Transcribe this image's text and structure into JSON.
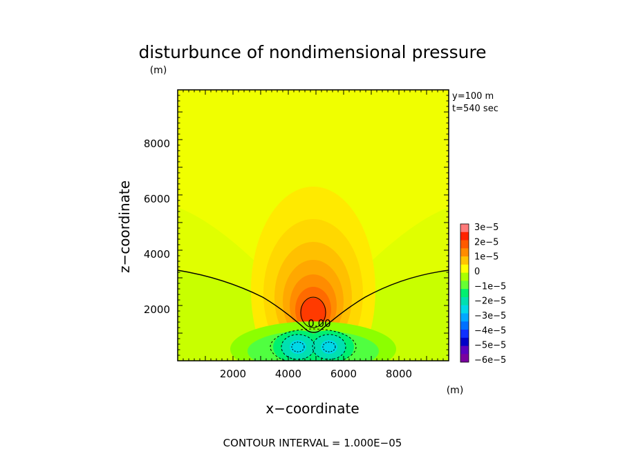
{
  "chart_data": {
    "type": "heatmap",
    "title": "disturbunce of nondimensional pressure",
    "xlabel": "x−coordinate",
    "ylabel": "z−coordinate",
    "x_unit": "(m)",
    "y_unit": "(m)",
    "xlim": [
      0,
      9800
    ],
    "ylim": [
      0,
      9800
    ],
    "x_ticks": [
      2000,
      4000,
      6000,
      8000
    ],
    "y_ticks": [
      2000,
      4000,
      6000,
      8000
    ],
    "x_tick_labels": [
      "2000",
      "4000",
      "6000",
      "8000"
    ],
    "y_tick_labels": [
      "2000",
      "4000",
      "6000",
      "8000"
    ],
    "annotation_lines": [
      "y=100  m",
      "t=540  sec"
    ],
    "colorbar": {
      "labels": [
        "3e−5",
        "2e−5",
        "1e−5",
        "0",
        "−1e−5",
        "−2e−5",
        "−3e−5",
        "−4e−5",
        "−5e−5",
        "−6e−5"
      ],
      "values": [
        3e-05,
        2e-05,
        1e-05,
        0,
        -1e-05,
        -2e-05,
        -3e-05,
        -4e-05,
        -5e-05,
        -6e-05
      ],
      "band_colors": [
        "#ff7a7a",
        "#ff2200",
        "#ff5a00",
        "#ff8c00",
        "#ffc400",
        "#ffff00",
        "#aaff00",
        "#66ff33",
        "#00f070",
        "#00e0b0",
        "#00d8e8",
        "#00a8ff",
        "#0070ff",
        "#1030ff",
        "#0000c8",
        "#5a00c0",
        "#7a00a0"
      ]
    },
    "features": {
      "background_value": 1e-06,
      "positive_center": {
        "x": 5000,
        "z": 1800,
        "peak": 2.3e-05
      },
      "negative_centers": [
        {
          "x": 4450,
          "z": 550,
          "min": -3.2e-05
        },
        {
          "x": 5650,
          "z": 550,
          "min": -3.2e-05
        }
      ],
      "zero_contour_label": "0.00",
      "contour_interval_value": 1e-05
    },
    "footer": "CONTOUR INTERVAL = 1.000E−05"
  }
}
